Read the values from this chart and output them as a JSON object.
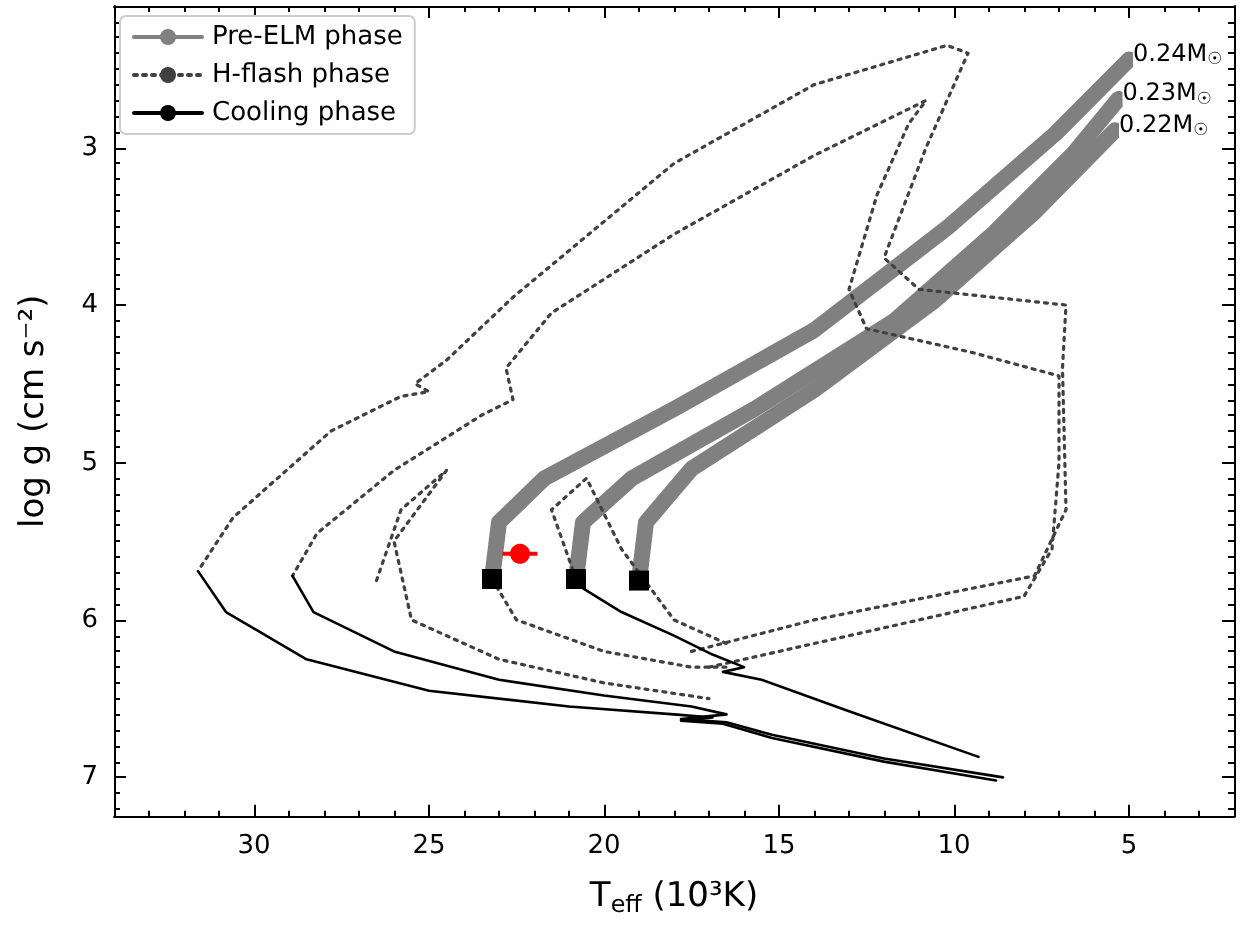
{
  "chart_data": {
    "type": "line",
    "xlabel": "T$_{eff}$ (10³K)",
    "ylabel": "log g (cm s⁻²)",
    "xlim": [
      34,
      2
    ],
    "ylim": [
      7.25,
      2.1
    ],
    "xticks": [
      30,
      25,
      20,
      15,
      10,
      5
    ],
    "yticks": [
      3,
      4,
      5,
      6,
      7
    ],
    "grid": false,
    "legend": "top left",
    "series": [
      {
        "name": "Pre-ELM phase",
        "color": "#808080",
        "line_style": "solid",
        "marker": "none",
        "x": [
          23.2,
          23.0,
          21.7,
          18.0,
          14.0,
          10.2,
          7.1,
          5.0
        ],
        "values": [
          5.74,
          5.38,
          5.1,
          4.66,
          4.16,
          3.51,
          2.91,
          2.44
        ]
      },
      {
        "color": "#808080",
        "line_style": "solid",
        "marker": "none",
        "x": [
          20.8,
          20.6,
          19.2,
          15.7,
          11.7,
          8.85,
          6.6,
          5.3
        ],
        "values": [
          5.74,
          5.38,
          5.1,
          4.66,
          4.1,
          3.54,
          3.04,
          2.69
        ]
      },
      {
        "color": "#808080",
        "line_style": "solid",
        "marker": "none",
        "x": [
          19.0,
          18.8,
          17.5,
          14.0,
          10.6,
          7.7,
          5.4
        ],
        "values": [
          5.75,
          5.38,
          5.04,
          4.54,
          3.98,
          3.41,
          2.89
        ]
      },
      {
        "name": "H-flash phase",
        "color": "#404040",
        "line_style": "dotted",
        "marker": "none",
        "x": [
          17.5,
          14,
          7.7,
          6.8,
          6.9,
          6.8,
          11,
          12,
          10.8,
          9.6,
          10.2,
          14,
          18,
          22.6,
          24.5,
          25.4,
          25,
          25.8,
          27.8,
          30.6,
          31.6
        ],
        "values": [
          6.2,
          6.0,
          5.72,
          5.3,
          4.4,
          4.0,
          3.9,
          3.7,
          3.0,
          2.4,
          2.35,
          2.6,
          3.1,
          3.95,
          4.35,
          4.5,
          4.55,
          4.58,
          4.8,
          5.35,
          5.69
        ]
      },
      {
        "color": "#404040",
        "line_style": "dotted",
        "marker": "none",
        "x": [
          17,
          12,
          8,
          7.2,
          7.0,
          7.0,
          9.5,
          12.5,
          13,
          12.2,
          11.3,
          10.8,
          14,
          18,
          21.5,
          22.8,
          22.6,
          23.5,
          26,
          28.2,
          28.9
        ],
        "values": [
          6.3,
          6.05,
          5.85,
          5.55,
          5.0,
          4.45,
          4.3,
          4.15,
          3.9,
          3.3,
          2.85,
          2.7,
          3.05,
          3.55,
          4.05,
          4.4,
          4.6,
          4.7,
          5.05,
          5.45,
          5.72
        ]
      },
      {
        "color": "#404040",
        "line_style": "dotted",
        "marker": "none",
        "x": [
          23.2,
          22.5,
          20,
          17.5,
          16.4
        ],
        "values": [
          5.74,
          6.0,
          6.2,
          6.3,
          6.3
        ]
      },
      {
        "color": "#404040",
        "line_style": "dotted",
        "marker": "none",
        "x": [
          26.5,
          25.8,
          24.5,
          26,
          25.5,
          23,
          20,
          17
        ],
        "values": [
          5.75,
          5.3,
          5.05,
          5.5,
          6.0,
          6.25,
          6.4,
          6.5
        ]
      },
      {
        "color": "#404040",
        "line_style": "dotted",
        "marker": "none",
        "x": [
          20.8,
          21.5,
          20.5,
          19.5,
          18,
          16.5
        ],
        "values": [
          5.74,
          5.3,
          5.1,
          5.55,
          6.0,
          6.15
        ]
      },
      {
        "name": "Cooling phase",
        "color": "#000000",
        "line_style": "solid",
        "marker": "none",
        "x": [
          31.6,
          30.8,
          28.5,
          25,
          21,
          18,
          16.9,
          17.8,
          16.6,
          15.2,
          12,
          8.8
        ],
        "values": [
          5.69,
          5.95,
          6.25,
          6.45,
          6.55,
          6.6,
          6.62,
          6.64,
          6.66,
          6.75,
          6.9,
          7.02
        ]
      },
      {
        "color": "#000000",
        "line_style": "solid",
        "marker": "none",
        "x": [
          28.9,
          28.3,
          26,
          23,
          20,
          17.5,
          16.5,
          17.8,
          16.5,
          15.2,
          12,
          8.6
        ],
        "values": [
          5.72,
          5.95,
          6.2,
          6.38,
          6.48,
          6.55,
          6.6,
          6.63,
          6.65,
          6.73,
          6.88,
          7.0
        ]
      },
      {
        "color": "#000000",
        "line_style": "solid",
        "marker": "none",
        "x": [
          20.6,
          19.5,
          18,
          16.9,
          16.0,
          16.6,
          15.5,
          13,
          9.3
        ],
        "values": [
          5.8,
          5.95,
          6.1,
          6.22,
          6.3,
          6.33,
          6.38,
          6.58,
          6.87
        ]
      },
      {
        "type": "scatter",
        "color": "#000000",
        "marker": "square",
        "x": [
          23.2,
          20.8,
          19.0
        ],
        "values": [
          5.74,
          5.74,
          5.75
        ]
      },
      {
        "type": "scatter",
        "color": "#ff0000",
        "marker": "circle",
        "x": [
          22.4
        ],
        "values": [
          5.58
        ],
        "errors": [
          0.06
        ],
        "xerrors": [
          0.5
        ]
      }
    ],
    "annotations": [
      {
        "text": "0.24M$_{☉}$",
        "x": 5.0,
        "y": 2.44
      },
      {
        "text": "0.23M$_{☉}$",
        "x": 5.3,
        "y": 2.69
      },
      {
        "text": "0.22M$_{☉}$",
        "x": 5.4,
        "y": 2.89
      }
    ]
  }
}
